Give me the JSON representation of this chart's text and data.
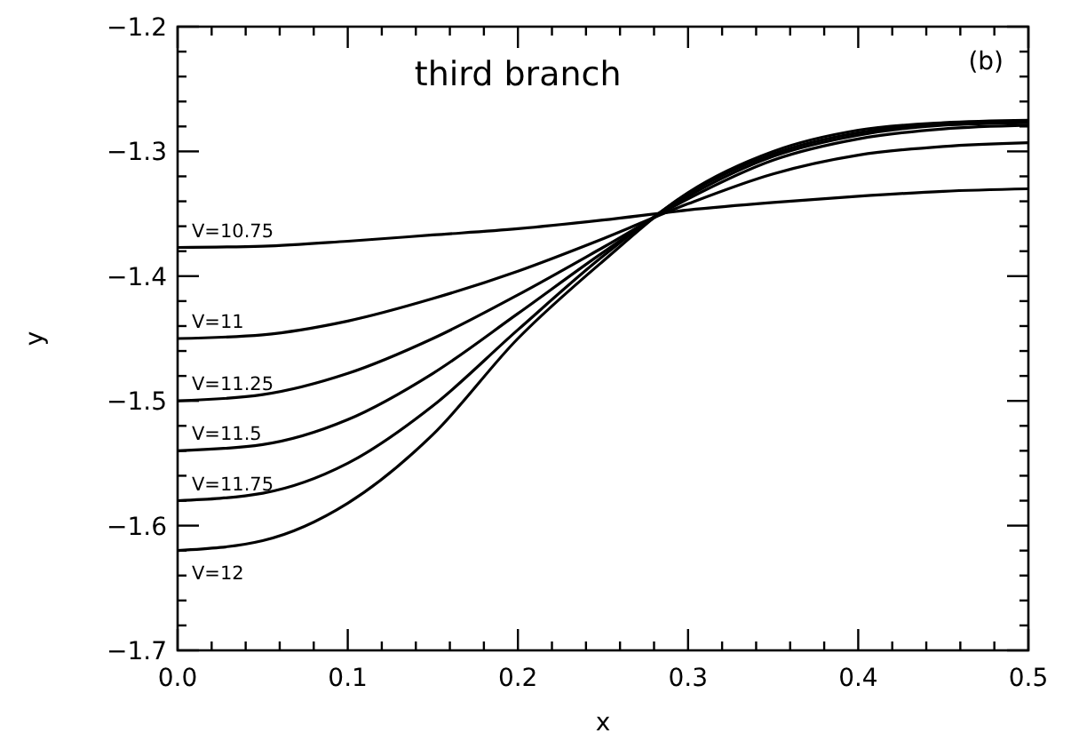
{
  "chart_data": {
    "type": "line",
    "xlabel": "x",
    "ylabel": "y",
    "annotations": [
      "third branch",
      "(b)"
    ],
    "x": [
      0,
      0.05,
      0.1,
      0.15,
      0.2,
      0.25,
      0.3,
      0.35,
      0.4,
      0.45,
      0.5
    ],
    "xlim": [
      0,
      0.5
    ],
    "ylim": [
      -1.7,
      -1.2
    ],
    "xticks": [
      {
        "value": 0,
        "label": "0.0"
      },
      {
        "value": 0.02,
        "label": null
      },
      {
        "value": 0.04,
        "label": null
      },
      {
        "value": 0.06,
        "label": null
      },
      {
        "value": 0.08,
        "label": null
      },
      {
        "value": 0.1,
        "label": "0.1"
      },
      {
        "value": 0.12,
        "label": null
      },
      {
        "value": 0.14,
        "label": null
      },
      {
        "value": 0.16,
        "label": null
      },
      {
        "value": 0.18,
        "label": null
      },
      {
        "value": 0.2,
        "label": "0.2"
      },
      {
        "value": 0.22,
        "label": null
      },
      {
        "value": 0.24,
        "label": null
      },
      {
        "value": 0.26,
        "label": null
      },
      {
        "value": 0.28,
        "label": null
      },
      {
        "value": 0.3,
        "label": "0.3"
      },
      {
        "value": 0.32,
        "label": null
      },
      {
        "value": 0.34,
        "label": null
      },
      {
        "value": 0.36,
        "label": null
      },
      {
        "value": 0.38,
        "label": null
      },
      {
        "value": 0.4,
        "label": "0.4"
      },
      {
        "value": 0.42,
        "label": null
      },
      {
        "value": 0.44,
        "label": null
      },
      {
        "value": 0.46,
        "label": null
      },
      {
        "value": 0.48,
        "label": null
      },
      {
        "value": 0.5,
        "label": "0.5"
      }
    ],
    "yticks": [
      -1.7,
      {
        "value": -1.68,
        "label": null
      },
      {
        "value": -1.66,
        "label": null
      },
      {
        "value": -1.64,
        "label": null
      },
      {
        "value": -1.62,
        "label": null
      },
      -1.6,
      {
        "value": -1.58,
        "label": null
      },
      {
        "value": -1.56,
        "label": null
      },
      {
        "value": -1.54,
        "label": null
      },
      {
        "value": -1.52,
        "label": null
      },
      -1.5,
      {
        "value": -1.48,
        "label": null
      },
      {
        "value": -1.46,
        "label": null
      },
      {
        "value": -1.44,
        "label": null
      },
      {
        "value": -1.42,
        "label": null
      },
      -1.4,
      {
        "value": -1.38,
        "label": null
      },
      {
        "value": -1.36,
        "label": null
      },
      {
        "value": -1.34,
        "label": null
      },
      {
        "value": -1.32,
        "label": null
      },
      -1.3,
      {
        "value": -1.28,
        "label": null
      },
      {
        "value": -1.26,
        "label": null
      },
      {
        "value": -1.24,
        "label": null
      },
      {
        "value": -1.22,
        "label": null
      },
      -1.2
    ],
    "grid": false,
    "marker": "none",
    "line_style": "solid",
    "series": [
      {
        "name": "V=10.75",
        "color": "#000000",
        "values": [
          -1.377,
          -1.376,
          -1.372,
          -1.367,
          -1.362,
          -1.355,
          -1.347,
          -1.341,
          -1.336,
          -1.332,
          -1.33
        ]
      },
      {
        "name": "V=11",
        "color": "#000000",
        "values": [
          -1.45,
          -1.447,
          -1.436,
          -1.418,
          -1.396,
          -1.37,
          -1.342,
          -1.318,
          -1.303,
          -1.296,
          -1.293
        ]
      },
      {
        "name": "V=11.25",
        "color": "#000000",
        "values": [
          -1.5,
          -1.495,
          -1.478,
          -1.45,
          -1.415,
          -1.377,
          -1.338,
          -1.307,
          -1.29,
          -1.282,
          -1.279
        ]
      },
      {
        "name": "V=11.5",
        "color": "#000000",
        "values": [
          -1.54,
          -1.535,
          -1.515,
          -1.478,
          -1.43,
          -1.381,
          -1.336,
          -1.304,
          -1.287,
          -1.279,
          -1.277
        ]
      },
      {
        "name": "V=11.75",
        "color": "#000000",
        "values": [
          -1.58,
          -1.574,
          -1.55,
          -1.504,
          -1.443,
          -1.384,
          -1.334,
          -1.302,
          -1.285,
          -1.278,
          -1.276
        ]
      },
      {
        "name": "V=12",
        "color": "#000000",
        "values": [
          -1.62,
          -1.612,
          -1.582,
          -1.527,
          -1.45,
          -1.388,
          -1.333,
          -1.3,
          -1.283,
          -1.277,
          -1.275
        ]
      }
    ]
  }
}
